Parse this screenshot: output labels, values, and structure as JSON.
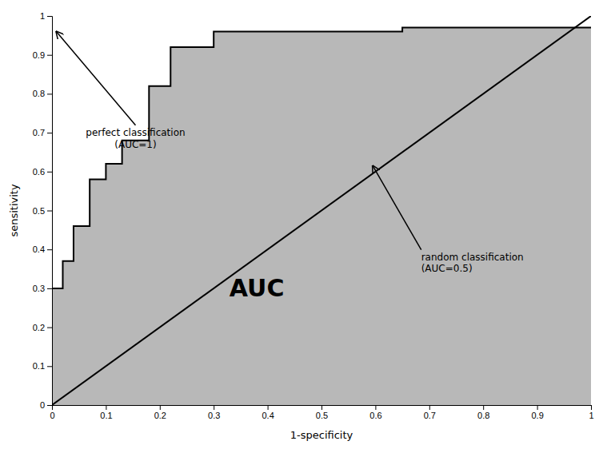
{
  "chart_data": {
    "type": "area",
    "xlabel": "1-specificity",
    "ylabel": "sensitivity",
    "xlim": [
      0,
      1
    ],
    "ylim": [
      0,
      1
    ],
    "xticks": [
      0,
      0.1,
      0.2,
      0.3,
      0.4,
      0.5,
      0.6,
      0.7,
      0.8,
      0.9,
      1
    ],
    "yticks": [
      0,
      0.1,
      0.2,
      0.3,
      0.4,
      0.5,
      0.6,
      0.7,
      0.8,
      0.9,
      1
    ],
    "grid": false,
    "series": [
      {
        "type": "area",
        "color": "#b8b8b8",
        "x": [
          0,
          0,
          0.02,
          0.02,
          0.04,
          0.04,
          0.07,
          0.07,
          0.1,
          0.1,
          0.13,
          0.13,
          0.18,
          0.18,
          0.22,
          0.22,
          0.3,
          0.3,
          0.65,
          0.65,
          1.0
        ],
        "values": [
          0,
          0.3,
          0.3,
          0.37,
          0.37,
          0.46,
          0.46,
          0.58,
          0.58,
          0.62,
          0.62,
          0.68,
          0.68,
          0.82,
          0.82,
          0.92,
          0.92,
          0.96,
          0.96,
          0.97,
          0.97
        ]
      },
      {
        "type": "line",
        "color": "#000000",
        "x": [
          0,
          0,
          0.02,
          0.02,
          0.04,
          0.04,
          0.07,
          0.07,
          0.1,
          0.1,
          0.13,
          0.13,
          0.18,
          0.18,
          0.22,
          0.22,
          0.3,
          0.3,
          0.65,
          0.65,
          1.0
        ],
        "values": [
          0,
          0.3,
          0.3,
          0.37,
          0.37,
          0.46,
          0.46,
          0.58,
          0.58,
          0.62,
          0.62,
          0.68,
          0.68,
          0.82,
          0.82,
          0.92,
          0.92,
          0.96,
          0.96,
          0.97,
          0.97
        ]
      },
      {
        "type": "line",
        "color": "#000000",
        "x": [
          0,
          1
        ],
        "values": [
          0,
          1
        ]
      }
    ],
    "annotations": [
      {
        "text": "AUC",
        "x": 0.38,
        "y": 0.3
      },
      {
        "text": "perfect classification\n(AUC=1)",
        "x": 0.155,
        "y": 0.715,
        "arrow_x": 0.008,
        "arrow_y": 0.96
      },
      {
        "text": "random classification\n(AUC=0.5)",
        "x": 0.685,
        "y": 0.395,
        "arrow_x": 0.595,
        "arrow_y": 0.615
      }
    ]
  }
}
